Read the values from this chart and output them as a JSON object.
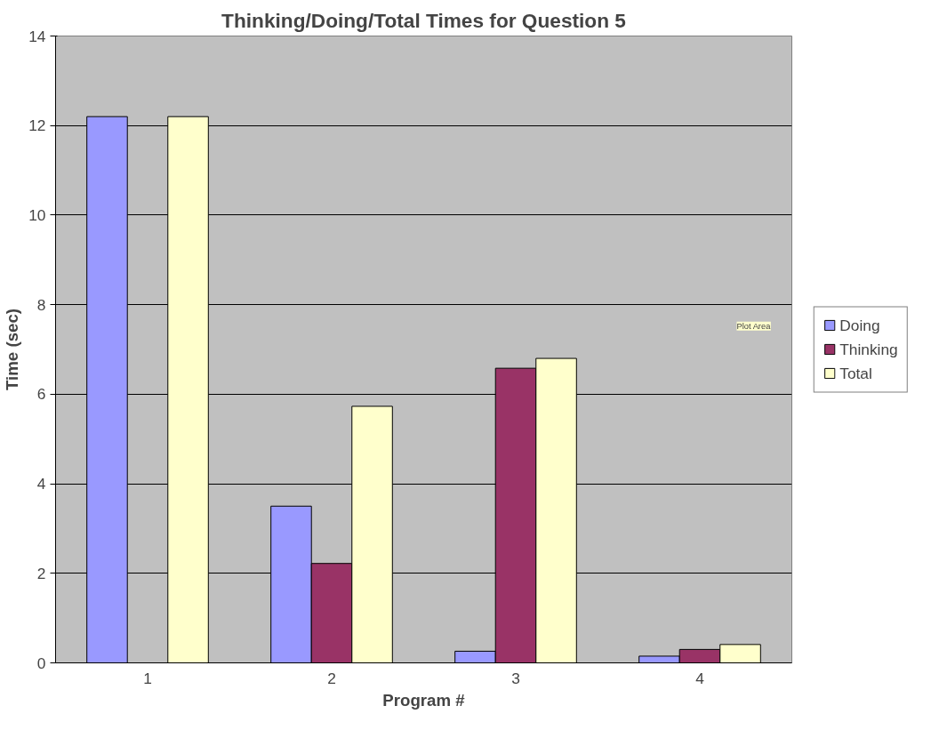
{
  "chart_data": {
    "type": "bar",
    "title": "Thinking/Doing/Total Times for Question 5",
    "xlabel": "Program #",
    "ylabel": "Time (sec)",
    "categories": [
      "1",
      "2",
      "3",
      "4"
    ],
    "series": [
      {
        "name": "Doing",
        "color": "#9999ff",
        "values": [
          12.2,
          3.5,
          0.26,
          0.15
        ]
      },
      {
        "name": "Thinking",
        "color": "#993366",
        "values": [
          null,
          2.22,
          6.58,
          0.3
        ]
      },
      {
        "name": "Total",
        "color": "#ffffcc",
        "values": [
          12.2,
          5.73,
          6.8,
          0.41
        ]
      }
    ],
    "ylim": [
      0,
      14
    ],
    "yticks": [
      0,
      2,
      4,
      6,
      8,
      10,
      12,
      14
    ],
    "grid": "y",
    "legend": "right",
    "annotations": [
      "Plot Area"
    ]
  }
}
